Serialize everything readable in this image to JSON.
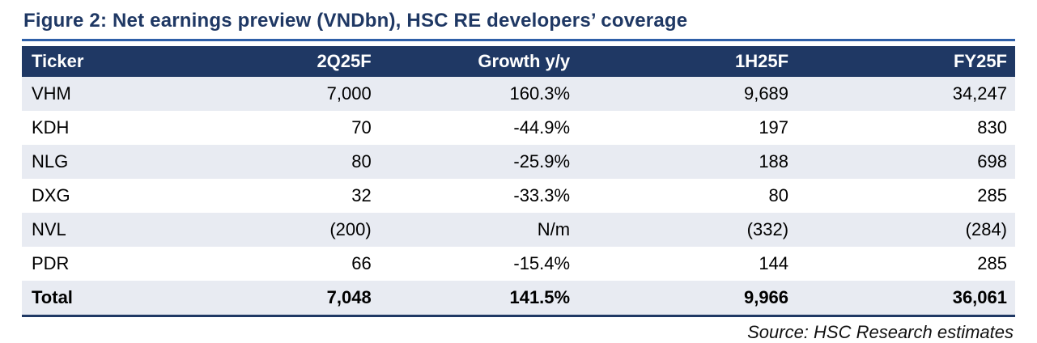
{
  "figure": {
    "title": "Figure 2: Net earnings preview (VNDbn), HSC RE developers’ coverage",
    "source": "Source: HSC Research estimates"
  },
  "chart_data": {
    "type": "table",
    "title": "Net earnings preview (VNDbn), HSC RE developers’ coverage",
    "columns": [
      "Ticker",
      "2Q25F",
      "Growth y/y",
      "1H25F",
      "FY25F"
    ],
    "rows": [
      [
        "VHM",
        "7,000",
        "160.3%",
        "9,689",
        "34,247"
      ],
      [
        "KDH",
        "70",
        "-44.9%",
        "197",
        "830"
      ],
      [
        "NLG",
        "80",
        "-25.9%",
        "188",
        "698"
      ],
      [
        "DXG",
        "32",
        "-33.3%",
        "80",
        "285"
      ],
      [
        "NVL",
        "(200)",
        "N/m",
        "(332)",
        "(284)"
      ],
      [
        "PDR",
        "66",
        "-15.4%",
        "144",
        "285"
      ],
      [
        "Total",
        "7,048",
        "141.5%",
        "9,966",
        "36,061"
      ]
    ],
    "source": "Source: HSC Research estimates"
  },
  "colors": {
    "header_bg": "#1F3864",
    "title_text": "#1F3864",
    "title_rule": "#2E5FA8",
    "row_alt": "#E8EBF2",
    "total_border": "#1F3864"
  }
}
